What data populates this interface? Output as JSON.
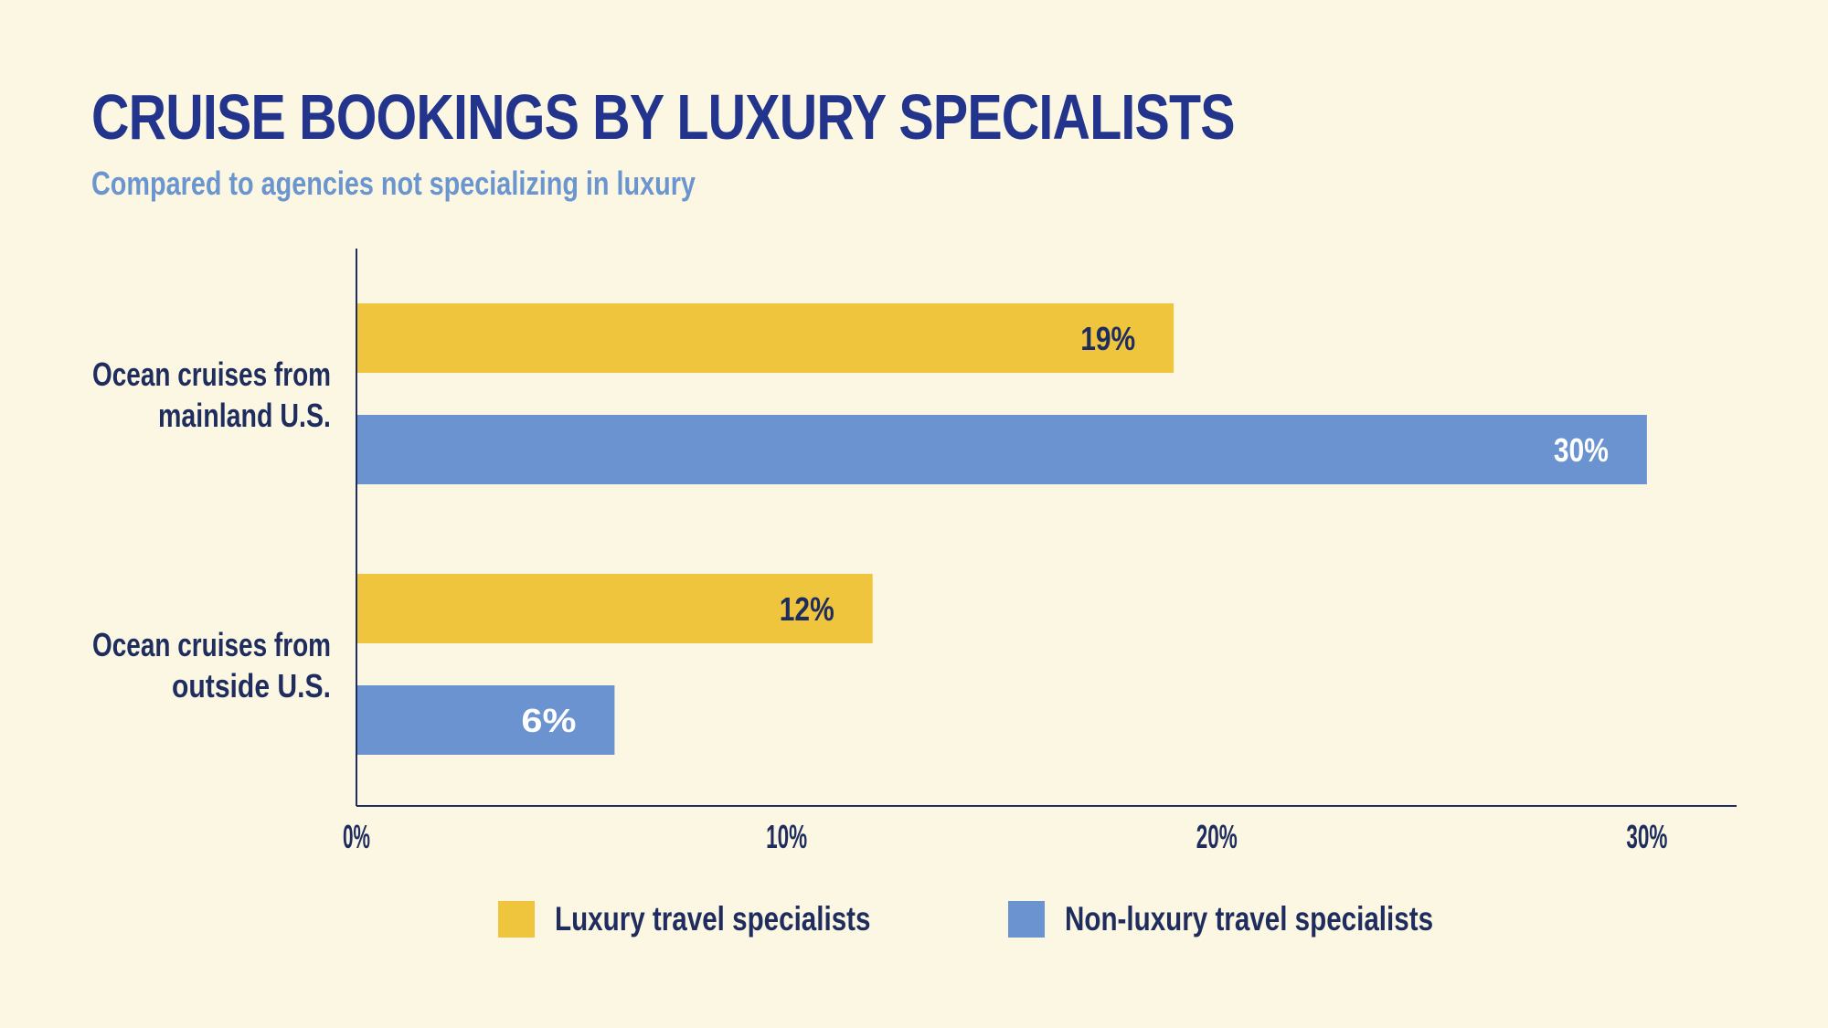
{
  "header": {
    "title": "CRUISE BOOKINGS BY LUXURY SPECIALISTS",
    "subtitle": "Compared to agencies not specializing in luxury"
  },
  "legend": {
    "items": [
      {
        "label": "Luxury travel specialists",
        "color": "#f0c53e"
      },
      {
        "label": "Non-luxury travel specialists",
        "color": "#6b93cf"
      }
    ]
  },
  "chart_data": {
    "type": "bar",
    "orientation": "horizontal",
    "title": "CRUISE BOOKINGS BY LUXURY SPECIALISTS",
    "subtitle": "Compared to agencies not specializing in luxury",
    "categories": [
      [
        "Ocean cruises from",
        "mainland U.S."
      ],
      [
        "Ocean cruises from",
        "outside U.S."
      ]
    ],
    "series": [
      {
        "name": "Luxury travel specialists",
        "color": "#f0c53e",
        "label_color": "#1f2d5e",
        "values": [
          19,
          12
        ],
        "labels": [
          "19%",
          "12%"
        ]
      },
      {
        "name": "Non-luxury travel specialists",
        "color": "#6b93cf",
        "label_color": "#ffffff",
        "values": [
          30,
          6
        ],
        "labels": [
          "30%",
          "6%"
        ]
      }
    ],
    "xlim": [
      0,
      32
    ],
    "ticks": [
      0,
      10,
      20,
      30
    ],
    "tick_labels": [
      "0%",
      "10%",
      "20%",
      "30%"
    ],
    "grid": false,
    "legend_position": "bottom"
  }
}
